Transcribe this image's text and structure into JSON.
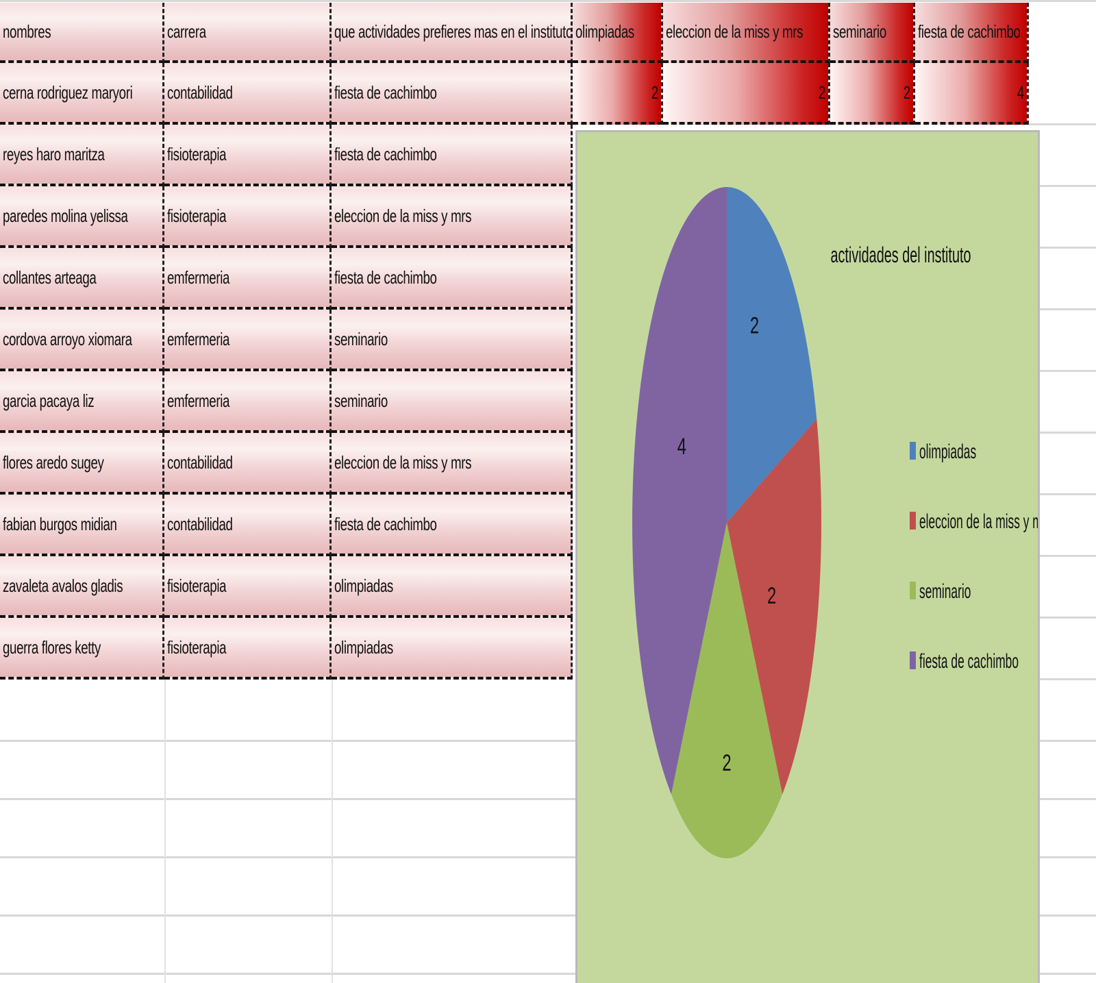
{
  "table": {
    "headers": [
      "nombres",
      "carrera",
      "que actividades prefieres mas en el instituto"
    ],
    "rows": [
      [
        "cerna rodriguez maryori",
        "contabilidad",
        "fiesta de cachimbo"
      ],
      [
        "reyes haro maritza",
        "fisioterapia",
        "fiesta de cachimbo"
      ],
      [
        "paredes molina yelissa",
        "fisioterapia",
        "eleccion de la miss y mrs"
      ],
      [
        "collantes arteaga",
        "emfermeria",
        "fiesta de cachimbo"
      ],
      [
        "cordova arroyo xiomara",
        "emfermeria",
        "seminario"
      ],
      [
        "garcia pacaya liz",
        "emfermeria",
        "seminario"
      ],
      [
        "flores aredo sugey",
        "contabilidad",
        "eleccion de la miss y mrs"
      ],
      [
        "fabian burgos midian",
        "contabilidad",
        "fiesta de cachimbo"
      ],
      [
        "zavaleta avalos gladis",
        "fisioterapia",
        "olimpiadas"
      ],
      [
        "guerra flores ketty",
        "fisioterapia",
        "olimpiadas"
      ]
    ]
  },
  "summary": {
    "headers": [
      "olimpiadas",
      "eleccion de la miss y mrs",
      "seminario",
      "fiesta de cachimbo"
    ],
    "values": [
      "2",
      "2",
      "2",
      "4"
    ]
  },
  "chart_data": {
    "type": "pie",
    "title": "actividades del instituto",
    "categories": [
      "olimpiadas",
      "eleccion de la miss y mrs",
      "seminario",
      "fiesta de cachimbo"
    ],
    "values": [
      2,
      2,
      2,
      4
    ],
    "data_labels": [
      "2",
      "2",
      "2",
      "4"
    ],
    "colors": [
      "#4f81bd",
      "#c0504d",
      "#9bbb59",
      "#8064a2"
    ],
    "background": "#c4d89e",
    "legend": "right"
  }
}
